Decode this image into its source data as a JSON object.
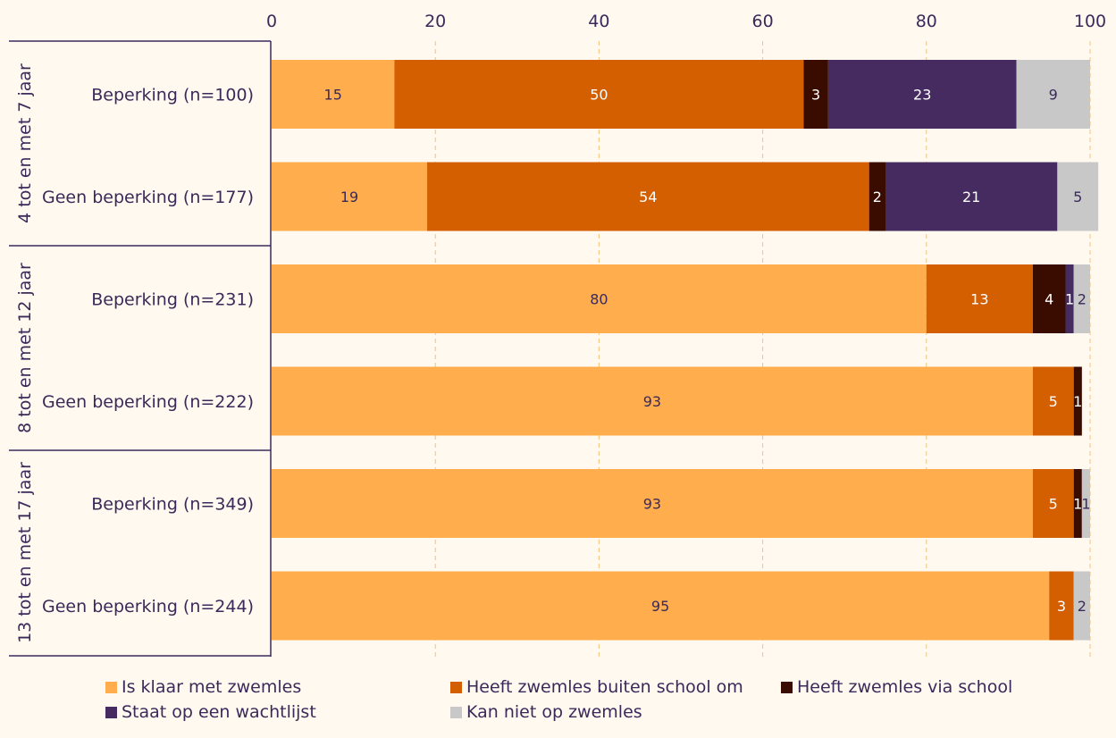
{
  "chart_data": {
    "type": "bar",
    "orientation": "horizontal",
    "stacked": true,
    "title": "",
    "xlabel": "",
    "ylabel": "",
    "xlim": [
      0,
      100
    ],
    "xticks": [
      "0",
      "20",
      "40",
      "60",
      "80",
      "100"
    ],
    "grid": true,
    "legend_position": "bottom",
    "groups": [
      {
        "label": "4 tot en met 7 jaar",
        "rows": [
          0,
          1
        ]
      },
      {
        "label": "8 tot en met 12 jaar",
        "rows": [
          2,
          3
        ]
      },
      {
        "label": "13 tot en met 17 jaar",
        "rows": [
          4,
          5
        ]
      }
    ],
    "categories": [
      "Beperking (n=100)",
      "Geen beperking (n=177)",
      "Beperking (n=231)",
      "Geen beperking (n=222)",
      "Beperking (n=349)",
      "Geen beperking (n=244)"
    ],
    "series": [
      {
        "name": "Is klaar met zwemles",
        "color": "#ffad4d",
        "label_color": "#3a2a5a",
        "values": [
          15,
          19,
          80,
          93,
          93,
          95
        ]
      },
      {
        "name": "Heeft zwemles buiten school om",
        "color": "#d45f00",
        "label_color": "#ffffff",
        "values": [
          50,
          54,
          13,
          5,
          5,
          3
        ]
      },
      {
        "name": "Heeft zwemles via school",
        "color": "#3a0c00",
        "label_color": "#ffffff",
        "values": [
          3,
          2,
          4,
          1,
          1,
          0
        ]
      },
      {
        "name": "Staat op een wachtlijst",
        "color": "#452b5f",
        "label_color": "#ffffff",
        "values": [
          23,
          21,
          1,
          0,
          0,
          0
        ]
      },
      {
        "name": "Kan niet op zwemles",
        "color": "#c8c8c8",
        "label_color": "#3a2a5a",
        "values": [
          9,
          5,
          2,
          0,
          1,
          2
        ]
      }
    ],
    "legend_order": [
      0,
      1,
      2,
      3,
      4
    ]
  }
}
